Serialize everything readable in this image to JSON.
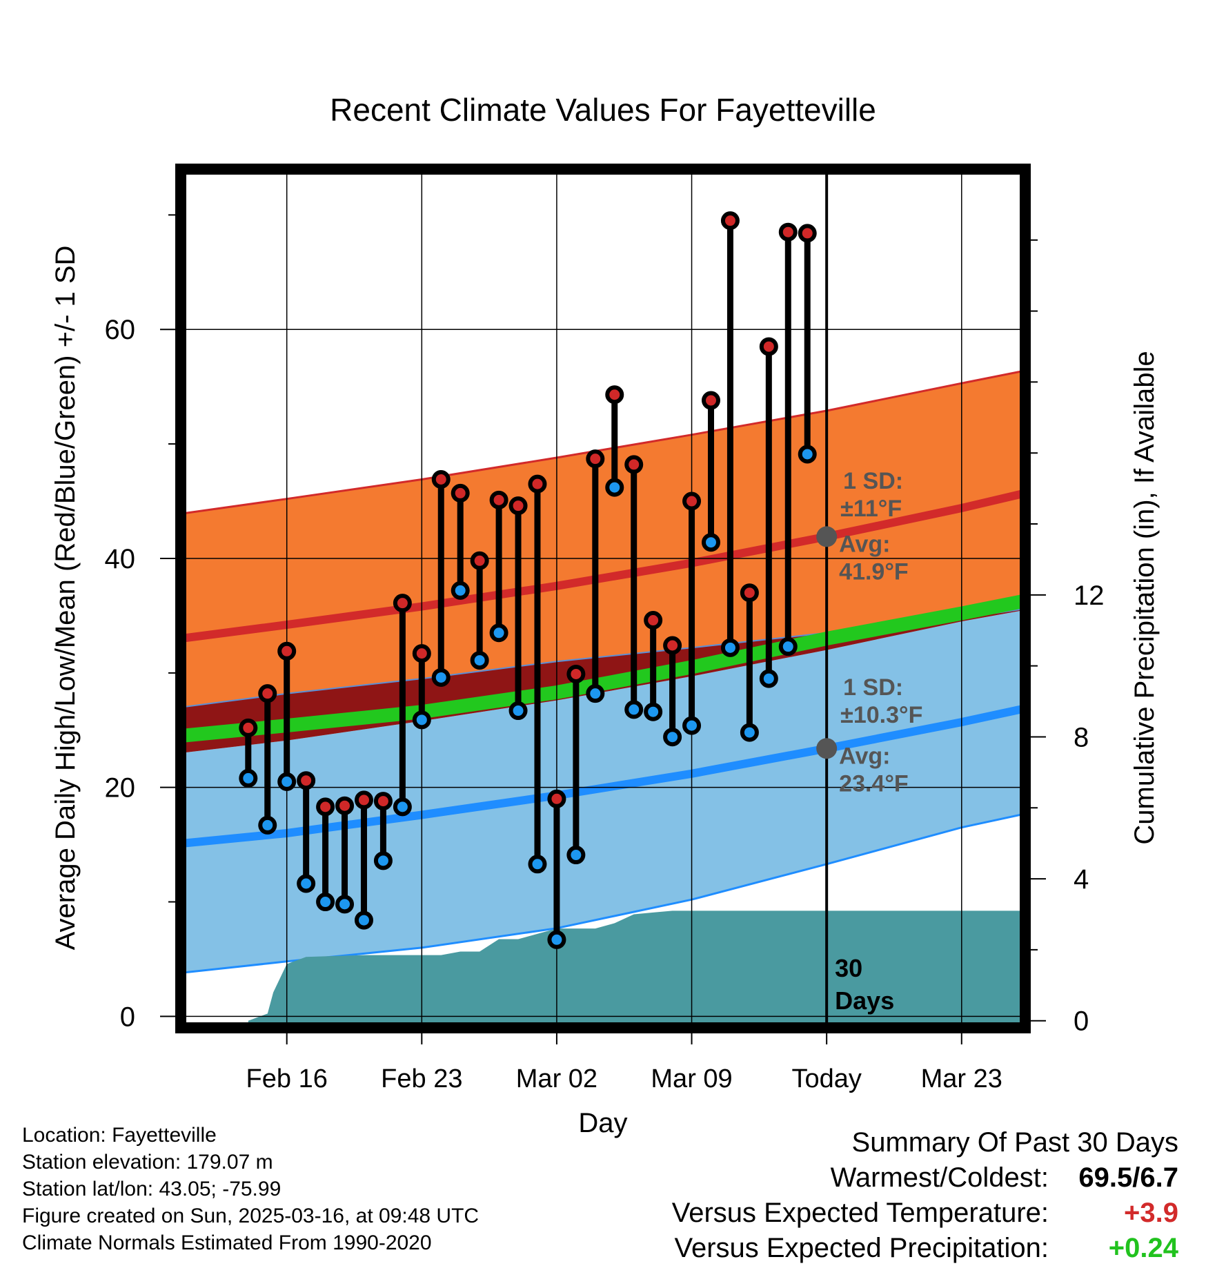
{
  "chart_data": {
    "type": "line",
    "title": "Recent Climate Values For Fayetteville",
    "xlabel": "Day",
    "ylabel": "Average Daily High/Low/Mean (Red/Blue/Green) +/- 1 SD",
    "y2label": "Cumulative Precipitation (in), If Available",
    "ylim": [
      -1,
      74
    ],
    "y2lim": [
      -0.2,
      24.0
    ],
    "x_range_days": [
      -33.5,
      10.3
    ],
    "x_ticks": [
      {
        "day": -28,
        "label": "Feb 16"
      },
      {
        "day": -21,
        "label": "Feb 23"
      },
      {
        "day": -14,
        "label": "Mar 02"
      },
      {
        "day": -7,
        "label": "Mar 09"
      },
      {
        "day": 0,
        "label": "Today"
      },
      {
        "day": 7,
        "label": "Mar 23"
      }
    ],
    "y_ticks": [
      0,
      20,
      40,
      60
    ],
    "y2_ticks": [
      0,
      4,
      8,
      12
    ],
    "grid": true,
    "today_marker": {
      "day": 0,
      "label_line1": "30",
      "label_line2": "Days"
    },
    "normals": {
      "day": [
        -33.5,
        -28,
        -21,
        -14,
        -7,
        0,
        7,
        10.3
      ],
      "high_avg": [
        33.0,
        34.2,
        35.8,
        37.6,
        39.6,
        41.9,
        44.4,
        45.7
      ],
      "high_upper": [
        43.9,
        45.2,
        46.9,
        48.8,
        50.8,
        52.9,
        55.3,
        56.4
      ],
      "high_lower": [
        27.0,
        28.2,
        29.5,
        31.0,
        32.2,
        33.5,
        34.8,
        35.6
      ],
      "mean_avg": [
        24.5,
        25.4,
        26.6,
        28.3,
        30.5,
        33.0,
        35.2,
        36.3
      ],
      "low_avg": [
        15.1,
        16.0,
        17.6,
        19.3,
        21.2,
        23.4,
        25.7,
        26.9
      ],
      "low_upper": [
        23.0,
        24.1,
        25.8,
        27.6,
        29.7,
        32.0,
        34.5,
        35.5
      ],
      "low_lower": [
        3.8,
        4.8,
        6.0,
        7.7,
        10.2,
        13.3,
        16.5,
        17.7
      ]
    },
    "annotations": {
      "high": {
        "sd_label": "1 SD:",
        "sd_value": "±11°F",
        "avg_label": "Avg:",
        "avg_value": "41.9°F",
        "avg": 41.9
      },
      "low": {
        "sd_label": "1 SD:",
        "sd_value": "±10.3°F",
        "avg_label": "Avg:",
        "avg_value": "23.4°F",
        "avg": 23.4
      }
    },
    "series": [
      {
        "name": "High",
        "day": [
          -30,
          -29,
          -28,
          -27,
          -26,
          -25,
          -24,
          -23,
          -22,
          -21,
          -20,
          -19,
          -18,
          -17,
          -16,
          -15,
          -14,
          -13,
          -12,
          -11,
          -10,
          -9,
          -8,
          -7,
          -6,
          -5,
          -4,
          -3,
          -2,
          -1
        ],
        "values": [
          25.2,
          28.2,
          31.9,
          20.6,
          18.3,
          18.4,
          18.9,
          18.8,
          36.1,
          31.7,
          46.9,
          45.7,
          39.8,
          45.1,
          44.6,
          46.5,
          19.0,
          29.9,
          48.7,
          54.3,
          48.2,
          34.6,
          32.4,
          45.0,
          53.8,
          69.5,
          37.0,
          58.5,
          68.5,
          68.4
        ]
      },
      {
        "name": "Low",
        "day": [
          -30,
          -29,
          -28,
          -27,
          -26,
          -25,
          -24,
          -23,
          -22,
          -21,
          -20,
          -19,
          -18,
          -17,
          -16,
          -15,
          -14,
          -13,
          -12,
          -11,
          -10,
          -9,
          -8,
          -7,
          -6,
          -5,
          -4,
          -3,
          -2,
          -1
        ],
        "values": [
          20.8,
          16.7,
          20.5,
          11.6,
          10.0,
          9.8,
          8.4,
          13.6,
          18.3,
          25.9,
          29.6,
          37.2,
          31.1,
          33.5,
          26.7,
          13.3,
          6.7,
          14.1,
          28.2,
          46.2,
          26.8,
          26.6,
          24.4,
          25.4,
          41.4,
          32.2,
          24.8,
          29.5,
          32.3,
          49.1
        ]
      },
      {
        "name": "Cumulative Precipitation",
        "day": [
          -30,
          -29,
          -28.7,
          -28,
          -27,
          -24,
          -20,
          -19,
          -18,
          -17,
          -16,
          -14,
          -12,
          -11,
          -10,
          -9,
          -8,
          10.3
        ],
        "values": [
          0.0,
          0.2,
          0.8,
          1.6,
          1.8,
          1.85,
          1.85,
          1.95,
          1.95,
          2.3,
          2.3,
          2.6,
          2.6,
          2.75,
          3.0,
          3.05,
          3.1,
          3.1
        ]
      }
    ]
  },
  "footer": {
    "location": "Location: Fayetteville",
    "elevation": "Station elevation: 179.07 m",
    "latlon": "Station lat/lon: 43.05; -75.99",
    "created": "Figure created on Sun, 2025-03-16, at 09:48 UTC",
    "normals": "Climate Normals Estimated From 1990-2020"
  },
  "summary": {
    "title": "Summary Of Past 30 Days",
    "warm_cold_label": "Warmest/Coldest:",
    "warm_cold_value": "69.5/6.7",
    "temp_label": "Versus Expected Temperature:",
    "temp_value": "+3.9",
    "precip_label": "Versus Expected Precipitation:",
    "precip_value": "+0.24"
  },
  "colors": {
    "high_band": "#f47a30",
    "high_line": "#d22a2a",
    "mean_band": "#c2c2c2",
    "mean_line": "#22c81e",
    "overlap": "#8f1515",
    "low_band": "#84c1e6",
    "low_line": "#1f8dff",
    "precip": "#4a9aa0",
    "marker_high": "#d02828",
    "marker_low": "#1d97f0",
    "annotation": "#555555",
    "temp_value": "#d22a2a",
    "precip_value": "#21c21e"
  }
}
